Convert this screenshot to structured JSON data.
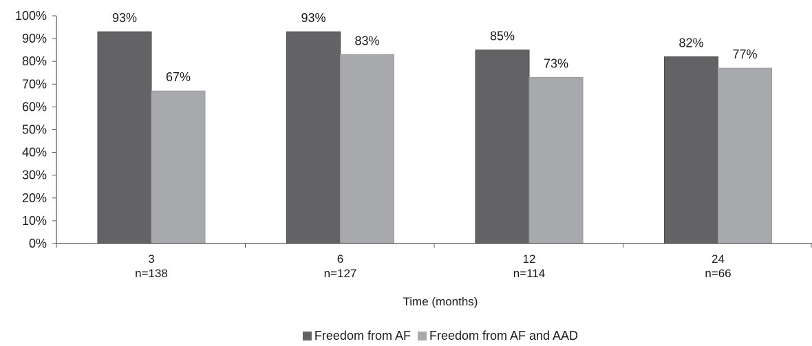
{
  "chart_data": {
    "type": "bar",
    "categories": [
      "3",
      "6",
      "12",
      "24"
    ],
    "category_sublabels": [
      "n=138",
      "n=127",
      "n=114",
      "n=66"
    ],
    "series": [
      {
        "name": "Freedom from AF",
        "values": [
          93,
          93,
          85,
          82
        ],
        "labels": [
          "93%",
          "93%",
          "85%",
          "82%"
        ],
        "color": "#636366"
      },
      {
        "name": "Freedom from AF and AAD",
        "values": [
          67,
          83,
          73,
          77
        ],
        "labels": [
          "67%",
          "83%",
          "73%",
          "77%"
        ],
        "color": "#a7a9ac"
      }
    ],
    "yticks": [
      "0%",
      "10%",
      "20%",
      "30%",
      "40%",
      "50%",
      "60%",
      "70%",
      "80%",
      "90%",
      "100%"
    ],
    "ylim": [
      0,
      100
    ],
    "xlabel": "Time (months)",
    "ylabel": "",
    "title": "",
    "grid": false,
    "legend_position": "bottom-center"
  }
}
